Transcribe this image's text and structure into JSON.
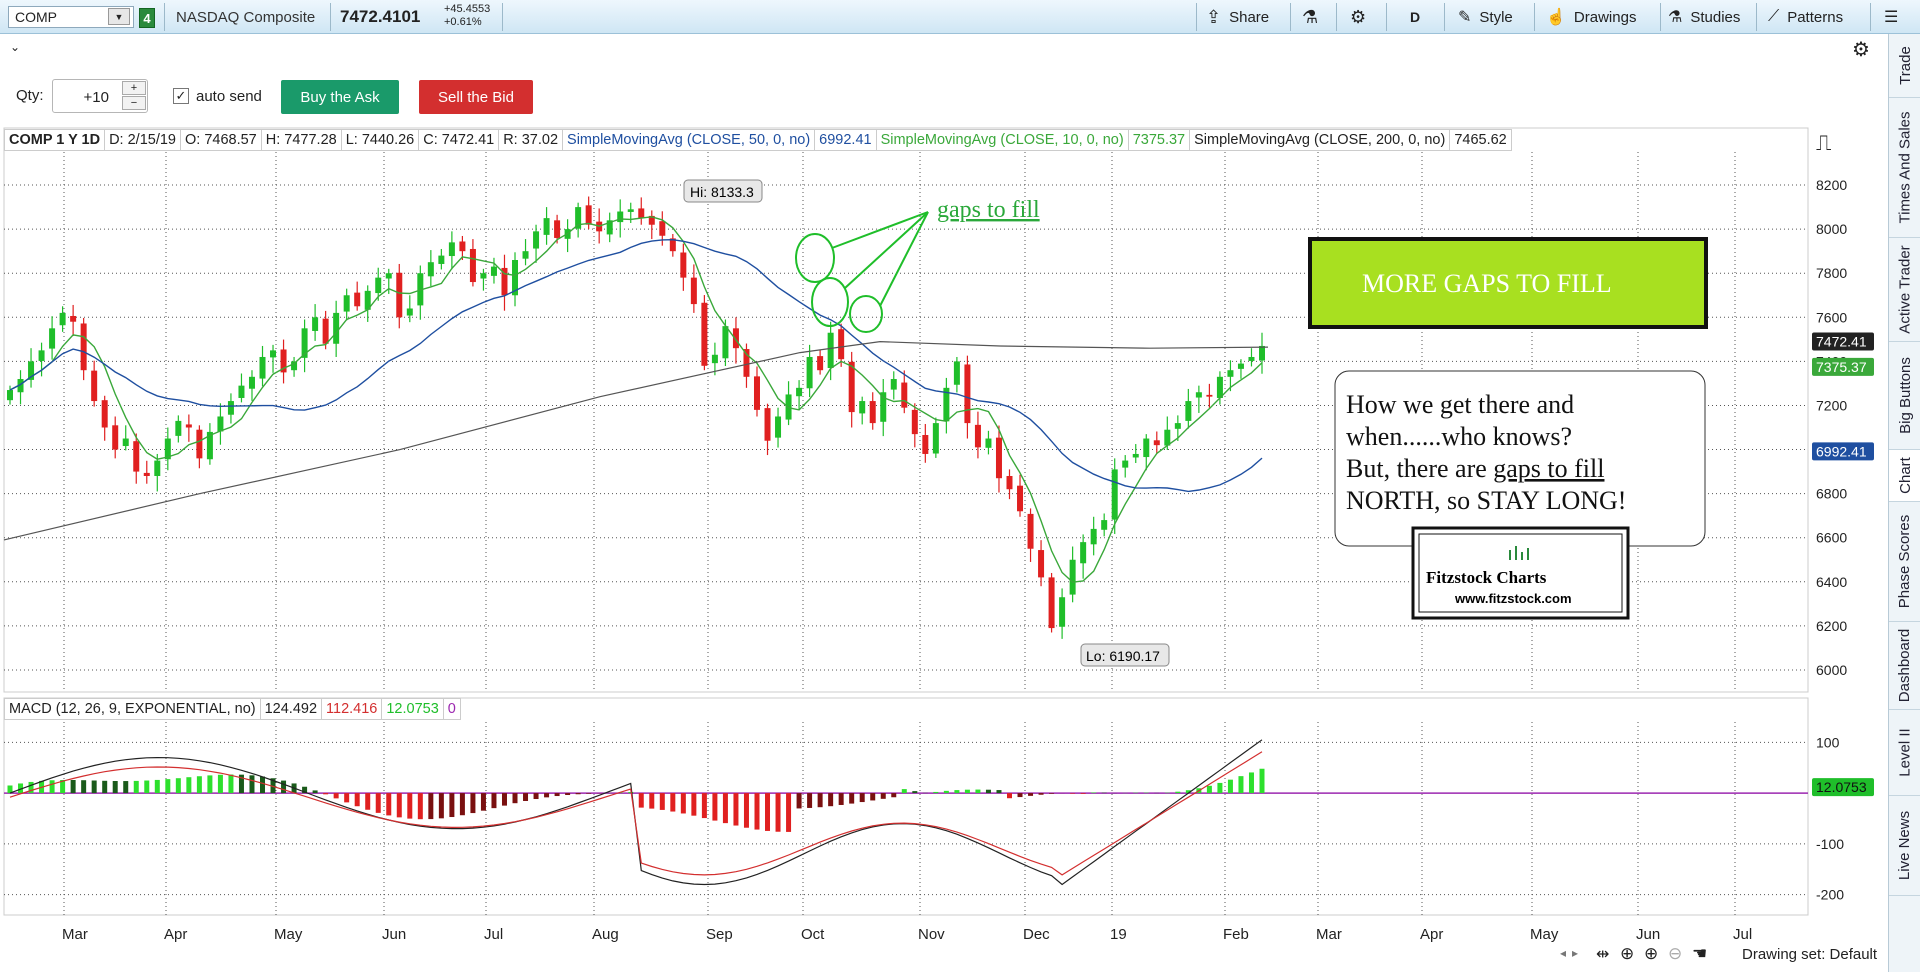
{
  "toolbar": {
    "symbol": "COMP",
    "link": "4",
    "name": "NASDAQ Composite",
    "last": "7472.4101",
    "chg": "+45.4553",
    "chg_pct": "+0.61%",
    "share": "Share",
    "period": "D",
    "style": "Style",
    "drawings": "Drawings",
    "studies": "Studies",
    "patterns": "Patterns"
  },
  "order": {
    "qty_label": "Qty:",
    "qty": "+10",
    "auto_send": "auto send",
    "buy": "Buy the Ask",
    "sell": "Sell the Bid"
  },
  "header": {
    "sym": "COMP 1 Y 1D",
    "date": "D: 2/15/19",
    "open": "O: 7468.57",
    "high": "H: 7477.28",
    "low": "L: 7440.26",
    "close": "C: 7472.41",
    "range": "R: 37.02",
    "sma50": "SimpleMovingAvg (CLOSE, 50, 0, no)",
    "sma50_val": "6992.41",
    "sma10": "SimpleMovingAvg (CLOSE, 10, 0, no)",
    "sma10_val": "7375.37",
    "sma200": "SimpleMovingAvg (CLOSE, 200, 0, no)",
    "sma200_val": "7465.62"
  },
  "macd_header": {
    "name": "MACD (12, 26, 9, EXPONENTIAL, no)",
    "v1": "124.492",
    "v2": "112.416",
    "v3": "12.0753",
    "v4": "0"
  },
  "side_tabs": [
    "Trade",
    "Times And Sales",
    "Active Trader",
    "Big Buttons",
    "Chart",
    "Phase Scores",
    "Dashboard",
    "Level II",
    "Live News"
  ],
  "status": {
    "drawing_set": "Drawing set: Default"
  },
  "annotations": {
    "gaps": "gaps to fill",
    "banner": "MORE GAPS TO FILL",
    "note1": "How we get there and",
    "note2": "when......who knows?",
    "note3a": " But, there are ",
    "note3b": "gaps to fill",
    "note4": "NORTH, so STAY LONG!",
    "logo": "Fitzstock Charts",
    "logo_url": "www.fitzstock.com",
    "hi": "Hi: 8133.3",
    "lo": "Lo: 6190.17"
  },
  "colors": {
    "up": "#1fbe2a",
    "down": "#e02020",
    "sma50": "#1f4fa0",
    "sma10": "#3aa83a",
    "sma200": "#555555",
    "banner": "#a8e020",
    "accent_green": "#1a9a6a",
    "accent_red": "#d32f2f"
  },
  "chart_data": [
    {
      "type": "candlestick",
      "title": "COMP 1 Y 1D",
      "ylim": [
        5900,
        8350
      ],
      "yticks": [
        6000,
        6200,
        6400,
        6600,
        6800,
        7000,
        7200,
        7400,
        7600,
        7800,
        8000,
        8200
      ],
      "xticks": [
        "Mar",
        "Apr",
        "May",
        "Jun",
        "Jul",
        "Aug",
        "Sep",
        "Oct",
        "Nov",
        "Dec",
        "19",
        "Feb",
        "Mar",
        "Apr",
        "May",
        "Jun",
        "Jul"
      ],
      "last_price": "7472.41",
      "sma10_last": "7375.37",
      "sma50_last": "6992.41",
      "close_series": [
        7270,
        7320,
        7400,
        7450,
        7550,
        7620,
        7580,
        7360,
        7220,
        7100,
        7000,
        7050,
        6900,
        6880,
        6950,
        7050,
        7130,
        7100,
        6960,
        7080,
        7150,
        7220,
        7290,
        7330,
        7420,
        7450,
        7350,
        7400,
        7550,
        7600,
        7480,
        7620,
        7700,
        7650,
        7720,
        7780,
        7800,
        7600,
        7640,
        7800,
        7850,
        7880,
        7940,
        7900,
        7760,
        7800,
        7830,
        7700,
        7860,
        7900,
        7990,
        8050,
        7960,
        8000,
        8100,
        8020,
        7990,
        8040,
        8080,
        8090,
        8050,
        8020,
        7970,
        7900,
        7780,
        7660,
        7380,
        7430,
        7560,
        7460,
        7330,
        7180,
        7040,
        7150,
        7250,
        7280,
        7420,
        7360,
        7530,
        7410,
        7170,
        7220,
        7120,
        7260,
        7320,
        7190,
        7070,
        6980,
        7120,
        7280,
        7400,
        7120,
        7010,
        7050,
        6870,
        6820,
        6720,
        6550,
        6420,
        6190,
        6330,
        6500,
        6580,
        6640,
        6680,
        6910,
        6950,
        6980,
        7050,
        7020,
        7090,
        7120,
        7220,
        7260,
        7240,
        7330,
        7360,
        7390,
        7420,
        7470
      ]
    },
    {
      "type": "macd",
      "title": "MACD (12, 26, 9, EXPONENTIAL, no)",
      "ylim": [
        -240,
        140
      ],
      "yticks": [
        100,
        -100,
        -200
      ],
      "last": "12.0753"
    }
  ]
}
